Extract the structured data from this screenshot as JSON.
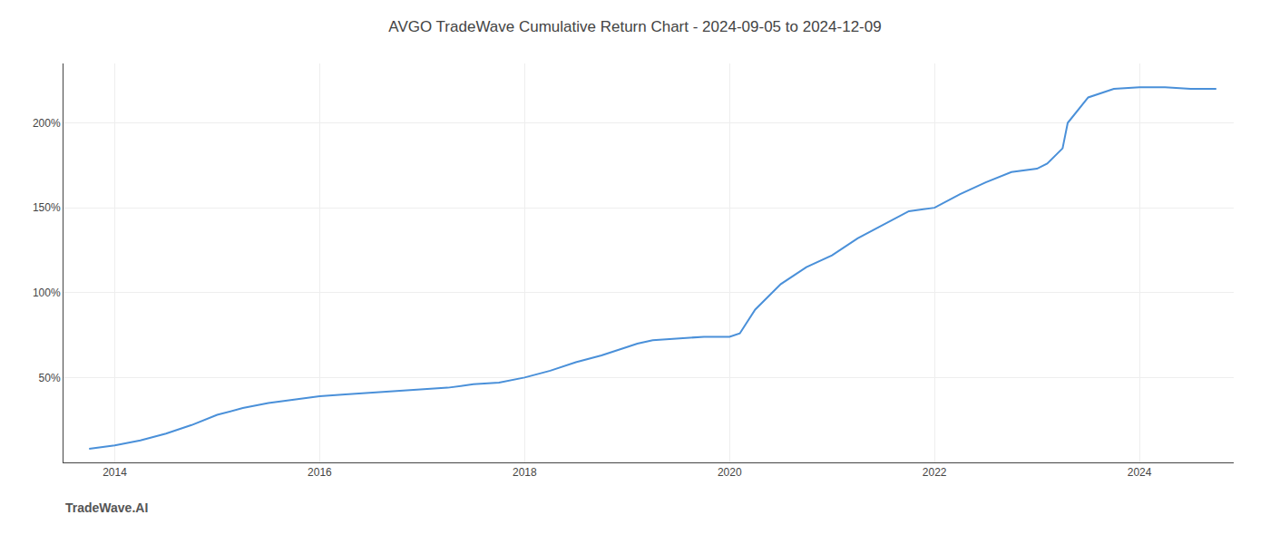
{
  "chart_data": {
    "type": "line",
    "title": "AVGO TradeWave Cumulative Return Chart - 2024-09-05 to 2024-12-09",
    "annotations": [
      "TradeWave.AI"
    ],
    "x": [
      2013.75,
      2014.0,
      2014.25,
      2014.5,
      2014.75,
      2015.0,
      2015.25,
      2015.5,
      2015.75,
      2016.0,
      2016.25,
      2016.5,
      2016.75,
      2017.0,
      2017.25,
      2017.5,
      2017.75,
      2018.0,
      2018.25,
      2018.5,
      2018.75,
      2019.0,
      2019.1,
      2019.25,
      2019.5,
      2019.75,
      2020.0,
      2020.1,
      2020.25,
      2020.5,
      2020.75,
      2021.0,
      2021.25,
      2021.5,
      2021.75,
      2022.0,
      2022.25,
      2022.5,
      2022.75,
      2023.0,
      2023.1,
      2023.25,
      2023.3,
      2023.5,
      2023.75,
      2024.0,
      2024.25,
      2024.5,
      2024.75
    ],
    "values": [
      8,
      10,
      13,
      17,
      22,
      28,
      32,
      35,
      37,
      39,
      40,
      41,
      42,
      43,
      44,
      46,
      47,
      50,
      54,
      59,
      63,
      68,
      70,
      72,
      73,
      74,
      74,
      76,
      90,
      105,
      115,
      122,
      132,
      140,
      148,
      150,
      158,
      165,
      171,
      173,
      176,
      185,
      200,
      215,
      220,
      221,
      221,
      220,
      220
    ],
    "color": "#4a90d9",
    "xlim": [
      2013.5,
      2024.92
    ],
    "ylim": [
      0,
      235
    ],
    "xticks": [
      2014,
      2016,
      2018,
      2020,
      2022,
      2024
    ],
    "yticks": [
      {
        "value": 50,
        "label": "50%"
      },
      {
        "value": 100,
        "label": "100%"
      },
      {
        "value": 150,
        "label": "150%"
      },
      {
        "value": 200,
        "label": "200%"
      }
    ],
    "grid": true
  }
}
